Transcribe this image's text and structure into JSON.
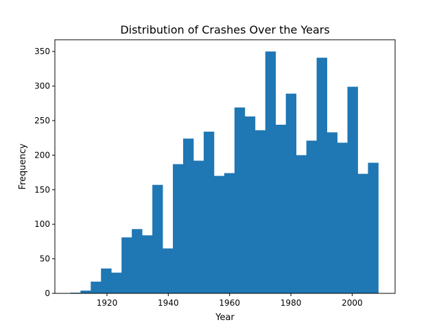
{
  "chart_data": {
    "type": "bar",
    "title": "Distribution of Crashes Over the Years",
    "xlabel": "Year",
    "ylabel": "Frequency",
    "color": "#1f77b4",
    "bin_start": 1908,
    "bin_width": 3.35,
    "values": [
      1,
      4,
      17,
      36,
      30,
      81,
      93,
      84,
      157,
      65,
      187,
      224,
      192,
      234,
      170,
      174,
      269,
      256,
      236,
      350,
      244,
      289,
      200,
      221,
      341,
      233,
      218,
      299,
      173,
      189
    ],
    "xlim": [
      1903,
      2014
    ],
    "ylim": [
      0,
      367
    ],
    "xticks": [
      1920,
      1940,
      1960,
      1980,
      2000
    ],
    "yticks": [
      0,
      50,
      100,
      150,
      200,
      250,
      300,
      350
    ],
    "grid": false
  }
}
